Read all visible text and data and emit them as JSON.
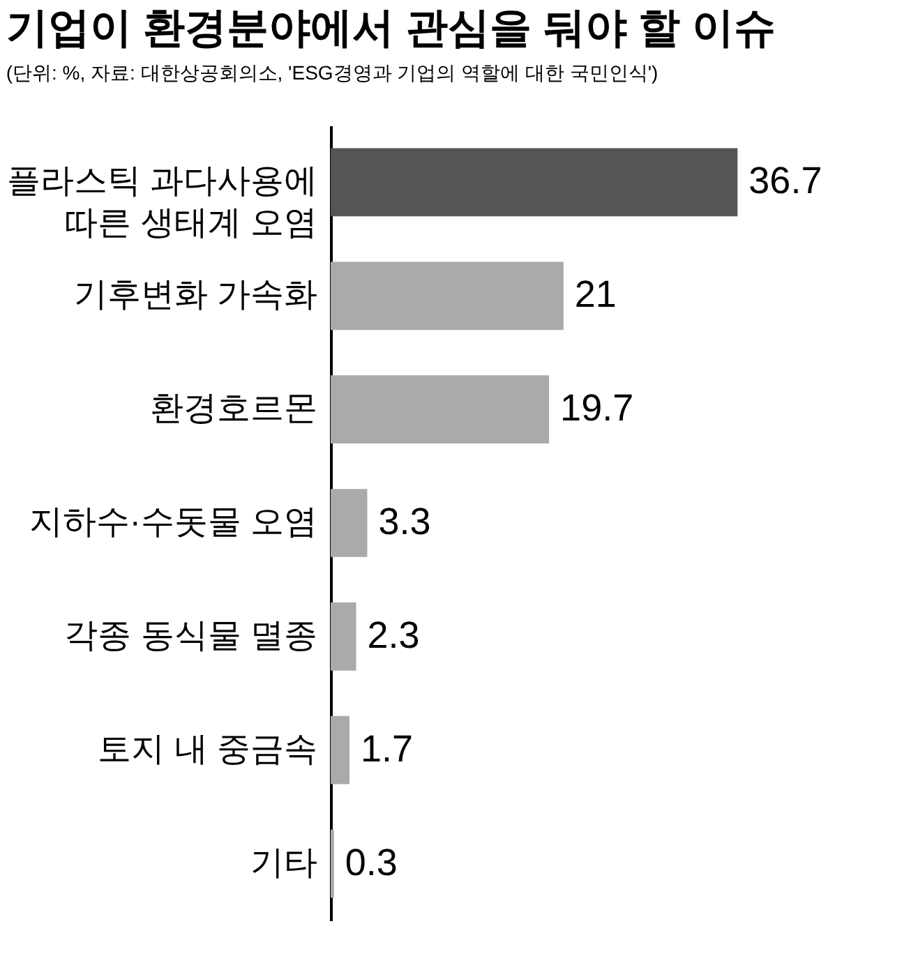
{
  "chart_data": {
    "type": "bar",
    "orientation": "horizontal",
    "title": "기업이 환경분야에서 관심을 둬야 할 이슈",
    "subtitle": "(단위: %, 자료: 대한상공회의소, 'ESG경영과 기업의 역할에 대한 국민인식')",
    "categories": [
      "플라스틱 과다사용에 따른 생태계 오염",
      "기후변화 가속화",
      "환경호르몬",
      "지하수·수돗물 오염",
      "각종 동식물 멸종",
      "토지 내 중금속",
      "기타"
    ],
    "values": [
      36.7,
      21,
      19.7,
      3.3,
      2.3,
      1.7,
      0.3
    ],
    "colors": [
      "#555555",
      "#aaaaaa",
      "#aaaaaa",
      "#aaaaaa",
      "#aaaaaa",
      "#aaaaaa",
      "#aaaaaa"
    ],
    "data_labels": true,
    "grid": false,
    "legend": false
  }
}
